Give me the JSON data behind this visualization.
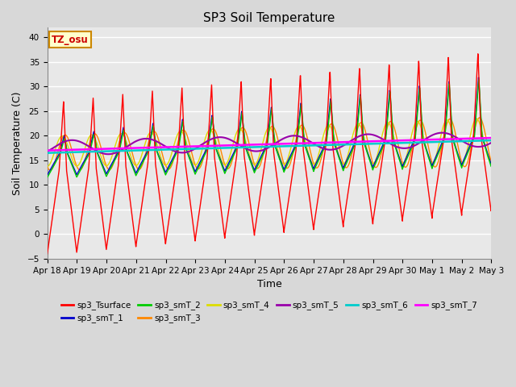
{
  "title": "SP3 Soil Temperature",
  "xlabel": "Time",
  "ylabel": "Soil Temperature (C)",
  "ylim": [
    -5,
    42
  ],
  "xlim": [
    0,
    15
  ],
  "tz_label": "TZ_osu",
  "x_tick_labels": [
    "Apr 18",
    "Apr 19",
    "Apr 20",
    "Apr 21",
    "Apr 22",
    "Apr 23",
    "Apr 24",
    "Apr 25",
    "Apr 26",
    "Apr 27",
    "Apr 28",
    "Apr 29",
    "Apr 30",
    "May 1",
    "May 2",
    "May 3"
  ],
  "series_colors": {
    "sp3_Tsurface": "#ff0000",
    "sp3_smT_1": "#0000cc",
    "sp3_smT_2": "#00cc00",
    "sp3_smT_3": "#ff8800",
    "sp3_smT_4": "#dddd00",
    "sp3_smT_5": "#9900aa",
    "sp3_smT_6": "#00cccc",
    "sp3_smT_7": "#ff00ff"
  },
  "plot_bg_color": "#e8e8e8",
  "fig_bg_color": "#d8d8d8",
  "grid_color": "#ffffff",
  "title_fontsize": 11,
  "axis_fontsize": 9,
  "tick_fontsize": 7.5
}
